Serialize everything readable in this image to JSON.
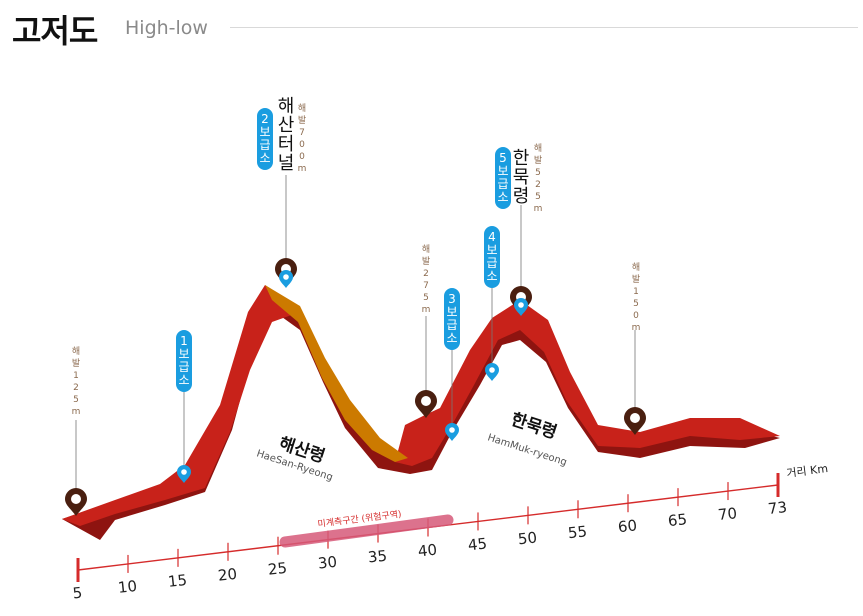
{
  "header": {
    "title_ko": "고저도",
    "title_en": "High-low"
  },
  "colors": {
    "track_main": "#c8221a",
    "track_dark": "#8e1410",
    "track_orange": "#cc7a00",
    "axis_red": "#d52b2b",
    "pin_dark": "#4a1f10",
    "badge_blue": "#1a9de0",
    "elev_brown": "#8b6a4e",
    "danger_band": "#d65a7a"
  },
  "axis": {
    "unit_label": "거리 Km",
    "ticks": [
      "5",
      "10",
      "15",
      "20",
      "25",
      "30",
      "35",
      "40",
      "45",
      "50",
      "55",
      "60",
      "65",
      "70",
      "73"
    ]
  },
  "danger_zone": {
    "label": "미계측구간 (위험구역)"
  },
  "passes": [
    {
      "name_ko": "해산령",
      "name_en": "HaeSan-Ryeong"
    },
    {
      "name_ko": "한묵령",
      "name_en": "HamMuk-ryeong"
    }
  ],
  "stations": [
    {
      "badge": "1보급소"
    },
    {
      "badge": "2보급소"
    },
    {
      "badge": "3보급소"
    },
    {
      "badge": "4보급소"
    },
    {
      "badge": "5보급소"
    }
  ],
  "peaks": [
    {
      "elev": "해발 125m"
    },
    {
      "name": "해산터널",
      "elev": "해발 700m"
    },
    {
      "elev": "해발 275m"
    },
    {
      "name": "한묵령",
      "elev": "해발 525m"
    },
    {
      "elev": "해발 150m"
    }
  ]
}
